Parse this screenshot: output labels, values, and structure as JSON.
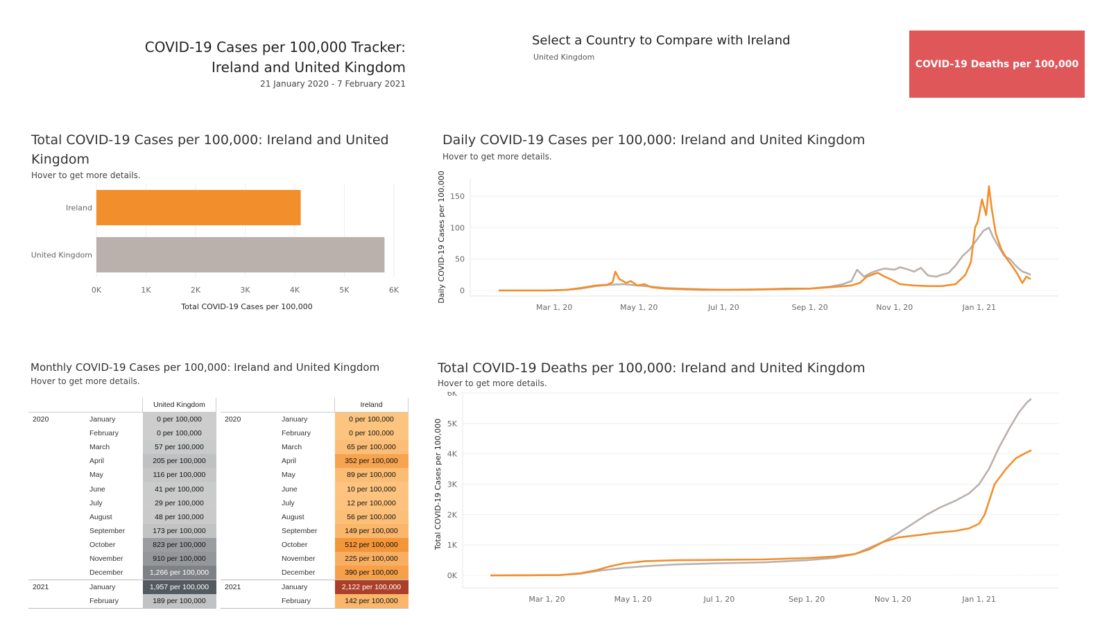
{
  "header": {
    "title_line1": "COVID-19 Cases per 100,000 Tracker:",
    "title_line2": "Ireland and United Kingdom",
    "date_range": "21 January 2020 - 7 February 2021",
    "select_title": "Select a Country to Compare with Ireland",
    "selected_country": "United Kingdom",
    "deaths_button": "COVID-19 Deaths per 100,000"
  },
  "colors": {
    "ireland": "#f28e2b",
    "uk": "#bab0ac",
    "button": "#e05759"
  },
  "panels": {
    "total": {
      "title": "Total COVID-19 Cases per 100,000: Ireland and United Kingdom",
      "hint": "Hover to get more details."
    },
    "daily": {
      "title": "Daily COVID-19 Cases per 100,000: Ireland and United Kingdom",
      "hint": "Hover to get more details."
    },
    "monthly": {
      "title": "Monthly COVID-19 Cases per 100,000: Ireland and United Kingdom",
      "hint": "Hover to get more details."
    },
    "deaths": {
      "title": "Total COVID-19 Deaths per 100,000: Ireland and United Kingdom",
      "hint": "Hover to get more details."
    }
  },
  "chart_data": [
    {
      "type": "bar",
      "orientation": "horizontal",
      "categories": [
        "Ireland",
        "United Kingdom"
      ],
      "values": [
        4120,
        5810
      ],
      "xlabel": "Total COVID-19 Cases per 100,000",
      "xlim": [
        0,
        6000
      ],
      "ticks": [
        "0K",
        "1K",
        "2K",
        "3K",
        "4K",
        "5K",
        "6K"
      ]
    },
    {
      "type": "line",
      "ylabel": "Daily COVID-19 Cases per 100,000",
      "ylim": [
        0,
        170
      ],
      "yticks": [
        "0",
        "50",
        "100",
        "150"
      ],
      "xticks": [
        "Mar 1, 20",
        "May 1, 20",
        "Jul 1, 20",
        "Sep 1, 20",
        "Nov 1, 20",
        "Jan 1, 21"
      ],
      "series": [
        {
          "name": "Ireland",
          "points": [
            [
              "2020-01-21",
              0
            ],
            [
              "2020-02-25",
              0
            ],
            [
              "2020-03-10",
              1
            ],
            [
              "2020-03-20",
              4
            ],
            [
              "2020-03-31",
              8
            ],
            [
              "2020-04-08",
              9
            ],
            [
              "2020-04-12",
              13
            ],
            [
              "2020-04-14",
              30
            ],
            [
              "2020-04-17",
              18
            ],
            [
              "2020-04-22",
              12
            ],
            [
              "2020-04-25",
              15
            ],
            [
              "2020-04-30",
              8
            ],
            [
              "2020-05-05",
              10
            ],
            [
              "2020-05-10",
              5
            ],
            [
              "2020-05-20",
              3
            ],
            [
              "2020-06-01",
              2
            ],
            [
              "2020-06-15",
              1
            ],
            [
              "2020-07-01",
              1
            ],
            [
              "2020-07-20",
              1.5
            ],
            [
              "2020-08-01",
              2
            ],
            [
              "2020-08-15",
              3
            ],
            [
              "2020-09-01",
              3
            ],
            [
              "2020-09-15",
              5
            ],
            [
              "2020-10-01",
              8
            ],
            [
              "2020-10-07",
              12
            ],
            [
              "2020-10-12",
              22
            ],
            [
              "2020-10-17",
              26
            ],
            [
              "2020-10-20",
              28
            ],
            [
              "2020-10-25",
              22
            ],
            [
              "2020-10-31",
              16
            ],
            [
              "2020-11-05",
              10
            ],
            [
              "2020-11-15",
              8
            ],
            [
              "2020-11-25",
              7
            ],
            [
              "2020-12-05",
              7
            ],
            [
              "2020-12-15",
              10
            ],
            [
              "2020-12-22",
              25
            ],
            [
              "2020-12-26",
              45
            ],
            [
              "2020-12-29",
              100
            ],
            [
              "2020-12-31",
              110
            ],
            [
              "2021-01-03",
              145
            ],
            [
              "2021-01-06",
              120
            ],
            [
              "2021-01-08",
              166
            ],
            [
              "2021-01-10",
              130
            ],
            [
              "2021-01-13",
              90
            ],
            [
              "2021-01-17",
              65
            ],
            [
              "2021-01-21",
              50
            ],
            [
              "2021-01-25",
              38
            ],
            [
              "2021-01-28",
              28
            ],
            [
              "2021-02-01",
              12
            ],
            [
              "2021-02-04",
              22
            ],
            [
              "2021-02-07",
              18
            ]
          ]
        },
        {
          "name": "United Kingdom",
          "points": [
            [
              "2020-01-21",
              0
            ],
            [
              "2020-02-25",
              0
            ],
            [
              "2020-03-10",
              1
            ],
            [
              "2020-03-20",
              3
            ],
            [
              "2020-03-31",
              7
            ],
            [
              "2020-04-10",
              9
            ],
            [
              "2020-04-20",
              10
            ],
            [
              "2020-04-30",
              8
            ],
            [
              "2020-05-10",
              6
            ],
            [
              "2020-05-20",
              4
            ],
            [
              "2020-06-01",
              3
            ],
            [
              "2020-06-15",
              2
            ],
            [
              "2020-07-01",
              1
            ],
            [
              "2020-07-20",
              1
            ],
            [
              "2020-08-01",
              1.5
            ],
            [
              "2020-08-15",
              2
            ],
            [
              "2020-09-01",
              3
            ],
            [
              "2020-09-15",
              6
            ],
            [
              "2020-09-25",
              10
            ],
            [
              "2020-10-01",
              15
            ],
            [
              "2020-10-05",
              33
            ],
            [
              "2020-10-10",
              22
            ],
            [
              "2020-10-15",
              28
            ],
            [
              "2020-10-20",
              32
            ],
            [
              "2020-10-25",
              35
            ],
            [
              "2020-11-01",
              33
            ],
            [
              "2020-11-05",
              37
            ],
            [
              "2020-11-10",
              34
            ],
            [
              "2020-11-15",
              30
            ],
            [
              "2020-11-20",
              36
            ],
            [
              "2020-11-25",
              24
            ],
            [
              "2020-12-01",
              22
            ],
            [
              "2020-12-05",
              25
            ],
            [
              "2020-12-10",
              28
            ],
            [
              "2020-12-15",
              40
            ],
            [
              "2020-12-20",
              55
            ],
            [
              "2020-12-25",
              65
            ],
            [
              "2020-12-30",
              80
            ],
            [
              "2021-01-04",
              95
            ],
            [
              "2021-01-08",
              100
            ],
            [
              "2021-01-11",
              85
            ],
            [
              "2021-01-15",
              70
            ],
            [
              "2021-01-19",
              55
            ],
            [
              "2021-01-23",
              50
            ],
            [
              "2021-01-27",
              40
            ],
            [
              "2021-02-01",
              30
            ],
            [
              "2021-02-04",
              28
            ],
            [
              "2021-02-07",
              25
            ]
          ]
        }
      ]
    },
    {
      "type": "table",
      "months": [
        "January",
        "February",
        "March",
        "April",
        "May",
        "June",
        "July",
        "August",
        "September",
        "October",
        "November",
        "December",
        "January",
        "February"
      ],
      "years": [
        {
          "label": "2020",
          "start": 0
        },
        {
          "label": "2021",
          "start": 12
        }
      ],
      "uk_header": "United Kingdom",
      "ireland_header": "Ireland",
      "uk": [
        "0 per 100,000",
        "0 per 100,000",
        "57 per 100,000",
        "205 per 100,000",
        "116 per 100,000",
        "41 per 100,000",
        "29 per 100,000",
        "48 per 100,000",
        "173 per 100,000",
        "823 per 100,000",
        "910 per 100,000",
        "1,266 per 100,000",
        "1,957 per 100,000",
        "189 per 100,000"
      ],
      "uk_values": [
        0,
        0,
        57,
        205,
        116,
        41,
        29,
        48,
        173,
        823,
        910,
        1266,
        1957,
        189
      ],
      "ireland": [
        "0 per 100,000",
        "0 per 100,000",
        "65 per 100,000",
        "352 per 100,000",
        "89 per 100,000",
        "10 per 100,000",
        "12 per 100,000",
        "56 per 100,000",
        "149 per 100,000",
        "512 per 100,000",
        "225 per 100,000",
        "390 per 100,000",
        "2,122 per 100,000",
        "142 per 100,000"
      ],
      "ireland_values": [
        0,
        0,
        65,
        352,
        89,
        10,
        12,
        56,
        149,
        512,
        225,
        390,
        2122,
        142
      ]
    },
    {
      "type": "line",
      "ylabel": "Total COVID-19 Cases per 100,000",
      "ylim": [
        0,
        6000
      ],
      "yticks": [
        "0K",
        "1K",
        "2K",
        "3K",
        "4K",
        "5K",
        "6K"
      ],
      "xticks": [
        "Mar 1, 20",
        "May 1, 20",
        "Jul 1, 20",
        "Sep 1, 20",
        "Nov 1, 20",
        "Jan 1, 21"
      ],
      "series": [
        {
          "name": "Ireland",
          "points": [
            [
              "2020-01-21",
              0
            ],
            [
              "2020-03-10",
              10
            ],
            [
              "2020-03-25",
              70
            ],
            [
              "2020-04-05",
              170
            ],
            [
              "2020-04-15",
              300
            ],
            [
              "2020-04-25",
              400
            ],
            [
              "2020-05-10",
              470
            ],
            [
              "2020-06-01",
              500
            ],
            [
              "2020-07-01",
              510
            ],
            [
              "2020-08-01",
              525
            ],
            [
              "2020-09-01",
              570
            ],
            [
              "2020-09-20",
              620
            ],
            [
              "2020-10-05",
              700
            ],
            [
              "2020-10-15",
              850
            ],
            [
              "2020-10-25",
              1100
            ],
            [
              "2020-11-05",
              1250
            ],
            [
              "2020-11-20",
              1330
            ],
            [
              "2020-12-01",
              1400
            ],
            [
              "2020-12-15",
              1460
            ],
            [
              "2020-12-25",
              1550
            ],
            [
              "2021-01-01",
              1700
            ],
            [
              "2021-01-05",
              2000
            ],
            [
              "2021-01-12",
              3000
            ],
            [
              "2021-01-20",
              3500
            ],
            [
              "2021-01-27",
              3850
            ],
            [
              "2021-02-03",
              4030
            ],
            [
              "2021-02-07",
              4120
            ]
          ]
        },
        {
          "name": "United Kingdom",
          "points": [
            [
              "2020-01-21",
              0
            ],
            [
              "2020-03-10",
              10
            ],
            [
              "2020-03-25",
              60
            ],
            [
              "2020-04-10",
              170
            ],
            [
              "2020-04-25",
              250
            ],
            [
              "2020-05-15",
              320
            ],
            [
              "2020-06-01",
              360
            ],
            [
              "2020-07-01",
              400
            ],
            [
              "2020-08-01",
              430
            ],
            [
              "2020-09-01",
              500
            ],
            [
              "2020-09-20",
              570
            ],
            [
              "2020-10-05",
              700
            ],
            [
              "2020-10-15",
              900
            ],
            [
              "2020-10-25",
              1100
            ],
            [
              "2020-11-05",
              1400
            ],
            [
              "2020-11-15",
              1700
            ],
            [
              "2020-11-25",
              2000
            ],
            [
              "2020-12-05",
              2250
            ],
            [
              "2020-12-15",
              2450
            ],
            [
              "2020-12-25",
              2700
            ],
            [
              "2021-01-01",
              3000
            ],
            [
              "2021-01-08",
              3500
            ],
            [
              "2021-01-15",
              4200
            ],
            [
              "2021-01-22",
              4800
            ],
            [
              "2021-01-29",
              5350
            ],
            [
              "2021-02-04",
              5700
            ],
            [
              "2021-02-07",
              5810
            ]
          ]
        }
      ]
    }
  ]
}
